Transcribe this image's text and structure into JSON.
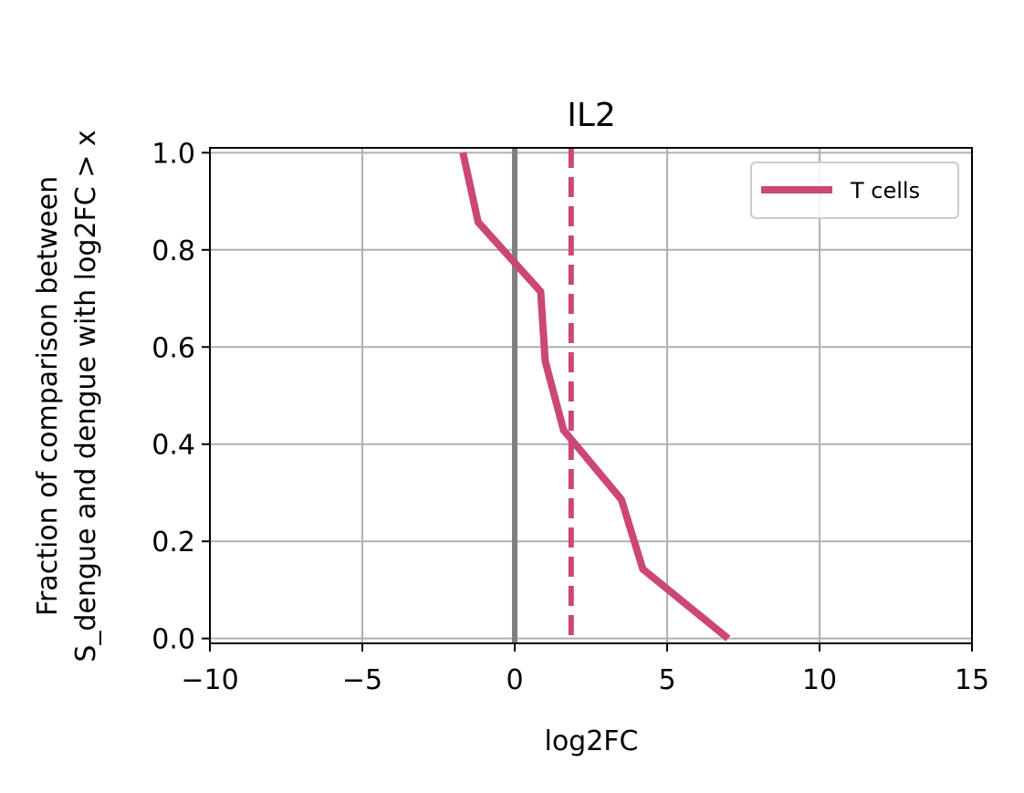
{
  "chart_data": {
    "type": "line",
    "title": "IL2",
    "xlabel": "log2FC",
    "ylabel_line1": "Fraction of comparison between",
    "ylabel_line2": "S_dengue and dengue with log2FC > x",
    "xlim": [
      -10,
      15
    ],
    "ylim": [
      -0.01,
      1.01
    ],
    "xticks": [
      -10,
      -5,
      0,
      5,
      10,
      15
    ],
    "xtick_labels": [
      "−10",
      "−5",
      "0",
      "5",
      "10",
      "15"
    ],
    "yticks": [
      0.0,
      0.2,
      0.4,
      0.6,
      0.8,
      1.0
    ],
    "ytick_labels": [
      "0.0",
      "0.2",
      "0.4",
      "0.6",
      "0.8",
      "1.0"
    ],
    "grid": true,
    "legend_position": "top-right",
    "series": [
      {
        "name": "T cells",
        "color": "#cc4778",
        "x": [
          -1.7,
          -1.2,
          0.85,
          1.0,
          1.6,
          3.5,
          4.2,
          7.0
        ],
        "y": [
          1.0,
          0.857,
          0.714,
          0.571,
          0.429,
          0.286,
          0.143,
          0.0
        ]
      }
    ],
    "reference_lines": [
      {
        "kind": "vertical",
        "x": 0,
        "color": "#808080",
        "style": "solid"
      },
      {
        "kind": "vertical",
        "x": 1.85,
        "color": "#cc4778",
        "style": "dashed"
      }
    ]
  }
}
